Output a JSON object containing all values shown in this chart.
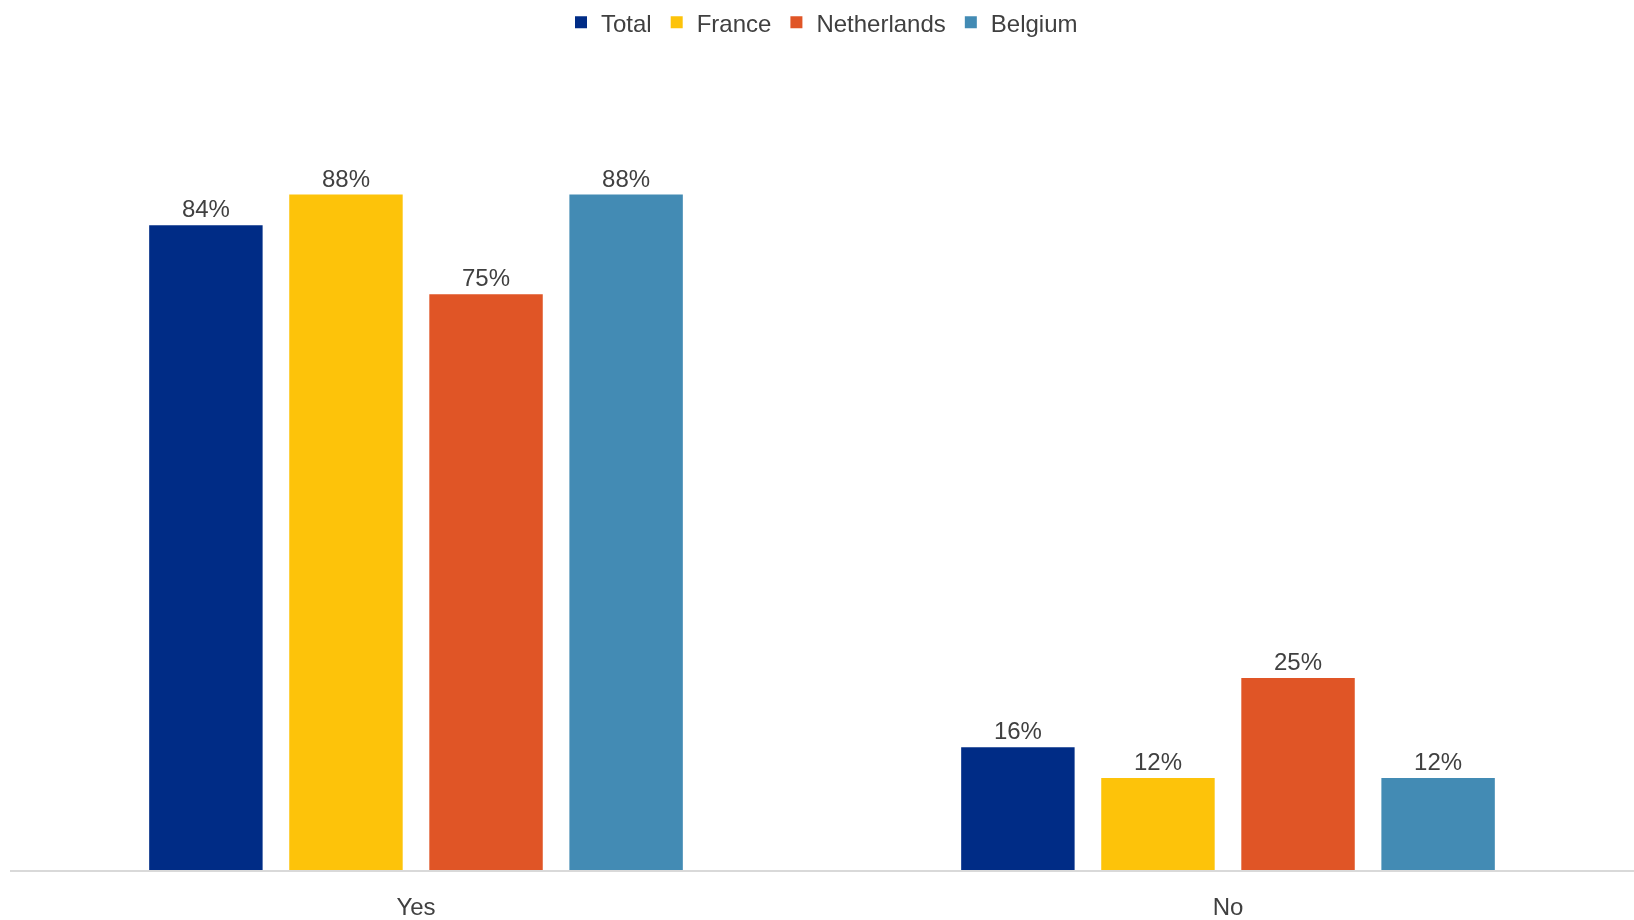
{
  "chart_data": {
    "type": "bar",
    "categories": [
      "Yes",
      "No"
    ],
    "series": [
      {
        "name": "Total",
        "color": "#002c86",
        "values": [
          84,
          16
        ],
        "value_labels": [
          "84%",
          "16%"
        ]
      },
      {
        "name": "France",
        "color": "#fdc30a",
        "values": [
          88,
          12
        ],
        "value_labels": [
          "88%",
          "12%"
        ]
      },
      {
        "name": "Netherlands",
        "color": "#e05526",
        "values": [
          75,
          25
        ],
        "value_labels": [
          "75%",
          "25%"
        ]
      },
      {
        "name": "Belgium",
        "color": "#438bb4",
        "values": [
          88,
          12
        ],
        "value_labels": [
          "88%",
          "12%"
        ]
      }
    ],
    "grid": false,
    "legend": "top"
  }
}
